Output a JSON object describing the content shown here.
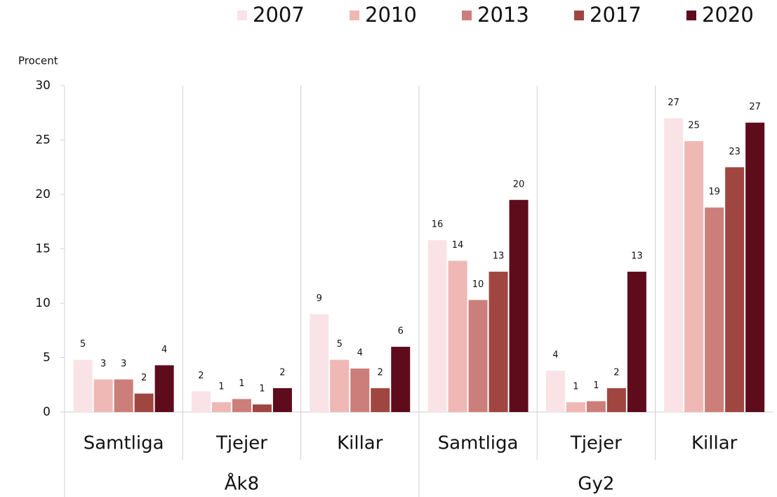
{
  "chart_data": {
    "type": "bar",
    "y_axis_label": "Procent",
    "groups": [
      {
        "name": "Åk8",
        "categories": [
          "Samtliga",
          "Tjejer",
          "Killar"
        ]
      },
      {
        "name": "Gy2",
        "categories": [
          "Samtliga",
          "Tjejer",
          "Killar"
        ]
      }
    ],
    "series": [
      {
        "name": "2007",
        "color": "#f9e3e6",
        "values": [
          4.8,
          1.9,
          9.0,
          15.8,
          3.8,
          27.0
        ],
        "value_labels": [
          "5",
          "2",
          "9",
          "16",
          "4",
          "27"
        ]
      },
      {
        "name": "2010",
        "color": "#efb8b5",
        "values": [
          3.0,
          0.9,
          4.8,
          13.9,
          0.9,
          24.9
        ],
        "value_labels": [
          "3",
          "1",
          "5",
          "14",
          "1",
          "25"
        ]
      },
      {
        "name": "2013",
        "color": "#cc7f7a",
        "values": [
          3.0,
          1.2,
          4.0,
          10.3,
          1.0,
          18.8
        ],
        "value_labels": [
          "3",
          "1",
          "4",
          "10",
          "1",
          "19"
        ]
      },
      {
        "name": "2017",
        "color": "#a04640",
        "values": [
          1.7,
          0.7,
          2.2,
          12.9,
          2.2,
          22.5
        ],
        "value_labels": [
          "2",
          "1",
          "2",
          "13",
          "2",
          "23"
        ]
      },
      {
        "name": "2020",
        "color": "#5e0b1c",
        "values": [
          4.3,
          2.2,
          6.0,
          19.5,
          12.9,
          26.6
        ],
        "value_labels": [
          "4",
          "2",
          "6",
          "20",
          "13",
          "27"
        ]
      }
    ],
    "ylim": [
      0,
      30
    ],
    "yticks": [
      0,
      5,
      10,
      15,
      20,
      25,
      30
    ],
    "legend": "top-right"
  }
}
